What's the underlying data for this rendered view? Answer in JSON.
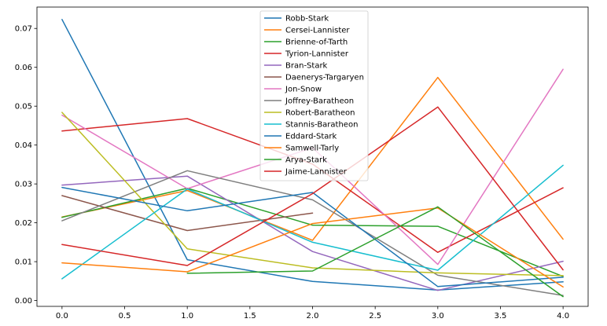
{
  "chart_data": {
    "type": "line",
    "title": "",
    "xlabel": "",
    "ylabel": "",
    "xlim": [
      -0.2,
      4.2
    ],
    "ylim": [
      -0.0015,
      0.0755
    ],
    "xticks": [
      "0.0",
      "0.5",
      "1.0",
      "1.5",
      "2.0",
      "2.5",
      "3.0",
      "3.5",
      "4.0"
    ],
    "xtick_values": [
      0,
      0.5,
      1,
      1.5,
      2,
      2.5,
      3,
      3.5,
      4
    ],
    "yticks": [
      "0.00",
      "0.01",
      "0.02",
      "0.03",
      "0.04",
      "0.05",
      "0.06",
      "0.07"
    ],
    "ytick_values": [
      0,
      0.01,
      0.02,
      0.03,
      0.04,
      0.05,
      0.06,
      0.07
    ],
    "grid": false,
    "legend_position": "top-center",
    "series": [
      {
        "name": "Robb-Stark",
        "color": "#1f77b4",
        "x": [
          0,
          1,
          2,
          3,
          4
        ],
        "y": [
          0.0723,
          0.0105,
          0.0049,
          0.0027,
          0.0048
        ]
      },
      {
        "name": "Cersei-Lannister",
        "color": "#ff7f0e",
        "x": [
          0,
          1,
          2,
          3,
          4
        ],
        "y": [
          0.0215,
          0.0283,
          0.0155,
          0.0574,
          0.0158
        ]
      },
      {
        "name": "Brienne-of-Tarth",
        "color": "#2ca02c",
        "x": [
          0,
          1,
          2,
          3,
          4
        ],
        "y": [
          0.0214,
          0.0289,
          0.0194,
          0.0191,
          0.0062
        ]
      },
      {
        "name": "Tyrion-Lannister",
        "color": "#d62728",
        "x": [
          0,
          1,
          2,
          3,
          4
        ],
        "y": [
          0.0436,
          0.0468,
          0.0351,
          0.0124,
          0.029
        ]
      },
      {
        "name": "Bran-Stark",
        "color": "#9467bd",
        "x": [
          0,
          1,
          2,
          3,
          4
        ],
        "y": [
          0.0297,
          0.032,
          0.0126,
          0.0026,
          0.0101
        ]
      },
      {
        "name": "Daenerys-Targaryen",
        "color": "#8c564b",
        "x": [
          0,
          1,
          2
        ],
        "y": [
          0.027,
          0.018,
          0.0225
        ]
      },
      {
        "name": "Jon-Snow",
        "color": "#e377c2",
        "x": [
          0,
          1,
          2,
          3,
          4
        ],
        "y": [
          0.0477,
          0.0288,
          0.0393,
          0.0093,
          0.0595
        ]
      },
      {
        "name": "Joffrey-Baratheon",
        "color": "#7f7f7f",
        "x": [
          0,
          1,
          2,
          3,
          4
        ],
        "y": [
          0.0205,
          0.0334,
          0.0259,
          0.0065,
          0.0013
        ]
      },
      {
        "name": "Robert-Baratheon",
        "color": "#bcbd22",
        "x": [
          0,
          1,
          2,
          3,
          4
        ],
        "y": [
          0.0484,
          0.0133,
          0.0084,
          0.0071,
          0.0064
        ]
      },
      {
        "name": "Stannis-Baratheon",
        "color": "#17becf",
        "x": [
          0,
          1,
          2,
          3,
          4
        ],
        "y": [
          0.0056,
          0.0287,
          0.015,
          0.0078,
          0.0348
        ]
      },
      {
        "name": "Eddard-Stark",
        "color": "#1f77b4",
        "x": [
          0,
          1,
          2,
          3,
          4
        ],
        "y": [
          0.0291,
          0.0231,
          0.0278,
          0.0036,
          0.006
        ]
      },
      {
        "name": "Samwell-Tarly",
        "color": "#ff7f0e",
        "x": [
          0,
          1,
          2,
          3,
          4
        ],
        "y": [
          0.0097,
          0.0074,
          0.0198,
          0.0238,
          0.0035
        ]
      },
      {
        "name": "Arya-Stark",
        "color": "#2ca02c",
        "x": [
          1,
          2,
          3,
          4
        ],
        "y": [
          0.007,
          0.0076,
          0.0241,
          0.001
        ]
      },
      {
        "name": "Jaime-Lannister",
        "color": "#d62728",
        "x": [
          0,
          1,
          2,
          3,
          4
        ],
        "y": [
          0.0144,
          0.009,
          0.0275,
          0.0498,
          0.0079
        ]
      }
    ]
  }
}
